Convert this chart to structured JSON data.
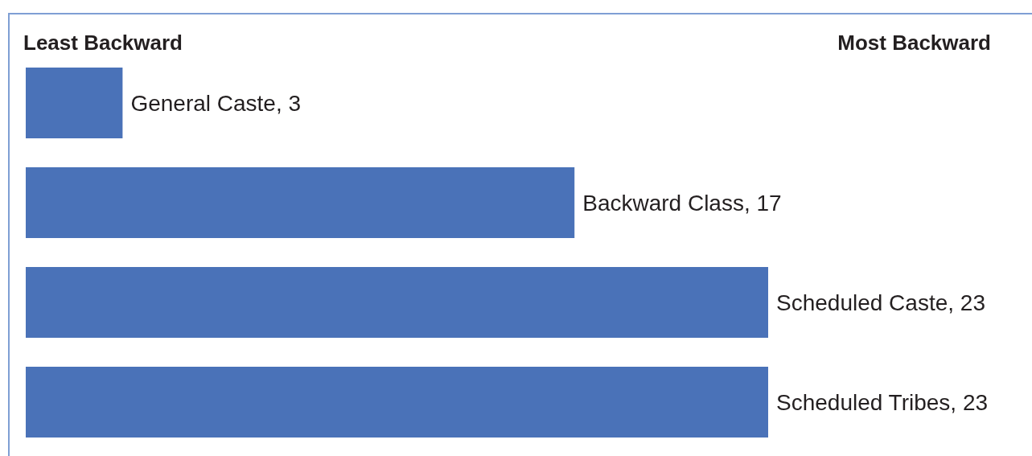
{
  "chart_data": {
    "type": "bar",
    "orientation": "horizontal",
    "categories": [
      null,
      null,
      null,
      null
    ],
    "values": [
      3,
      17,
      23,
      23
    ],
    "color": "#4a72b8",
    "value_labels": [
      "General Caste, 3",
      "Backward Class, 17",
      "Scheduled Caste, 23",
      "Scheduled Tribes, 23"
    ],
    "annotations": [
      "Least Backward",
      "Most Backward"
    ]
  }
}
